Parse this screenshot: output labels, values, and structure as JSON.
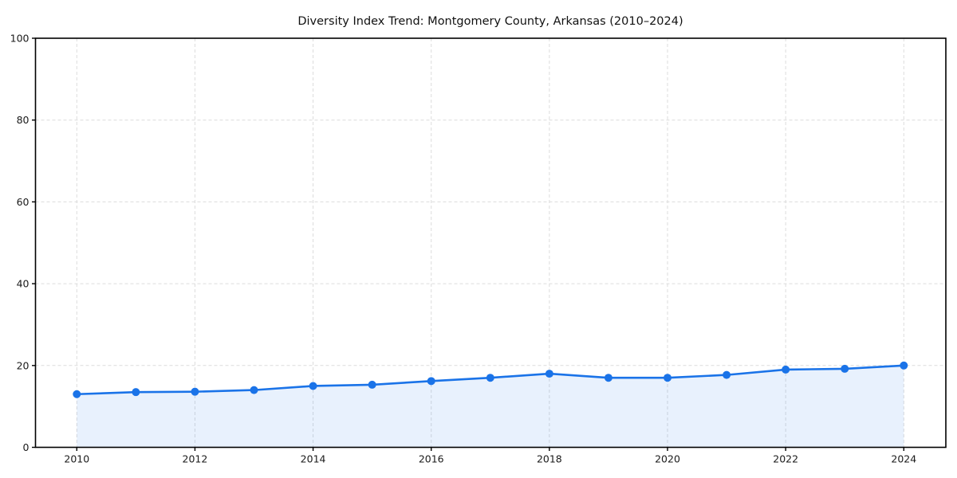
{
  "chart_data": {
    "type": "area",
    "title": "Diversity Index Trend: Montgomery County, Arkansas (2010–2024)",
    "x": [
      2010,
      2011,
      2012,
      2013,
      2014,
      2015,
      2016,
      2017,
      2018,
      2019,
      2020,
      2021,
      2022,
      2023,
      2024
    ],
    "series": [
      {
        "name": "Diversity Index",
        "values": [
          13.0,
          13.5,
          13.6,
          14.0,
          15.0,
          15.3,
          16.2,
          17.0,
          18.0,
          17.0,
          17.0,
          17.7,
          19.0,
          19.2,
          20.0
        ]
      }
    ],
    "xlabel": "",
    "ylabel": "",
    "ylim": [
      0,
      100
    ],
    "xtick_labels": [
      "2010",
      "2012",
      "2014",
      "2016",
      "2018",
      "2020",
      "2022",
      "2024"
    ],
    "ytick_labels": [
      "0",
      "20",
      "40",
      "60",
      "80",
      "100"
    ],
    "grid": true,
    "grid_style": "dashed",
    "legend": false,
    "marker": "circle",
    "colors": {
      "line": "#1a73e8",
      "fill": "rgba(26,115,232,0.10)",
      "grid": "#dcdcdc",
      "spine": "#000000",
      "text": "#1a1a1a",
      "background": "#ffffff"
    }
  }
}
